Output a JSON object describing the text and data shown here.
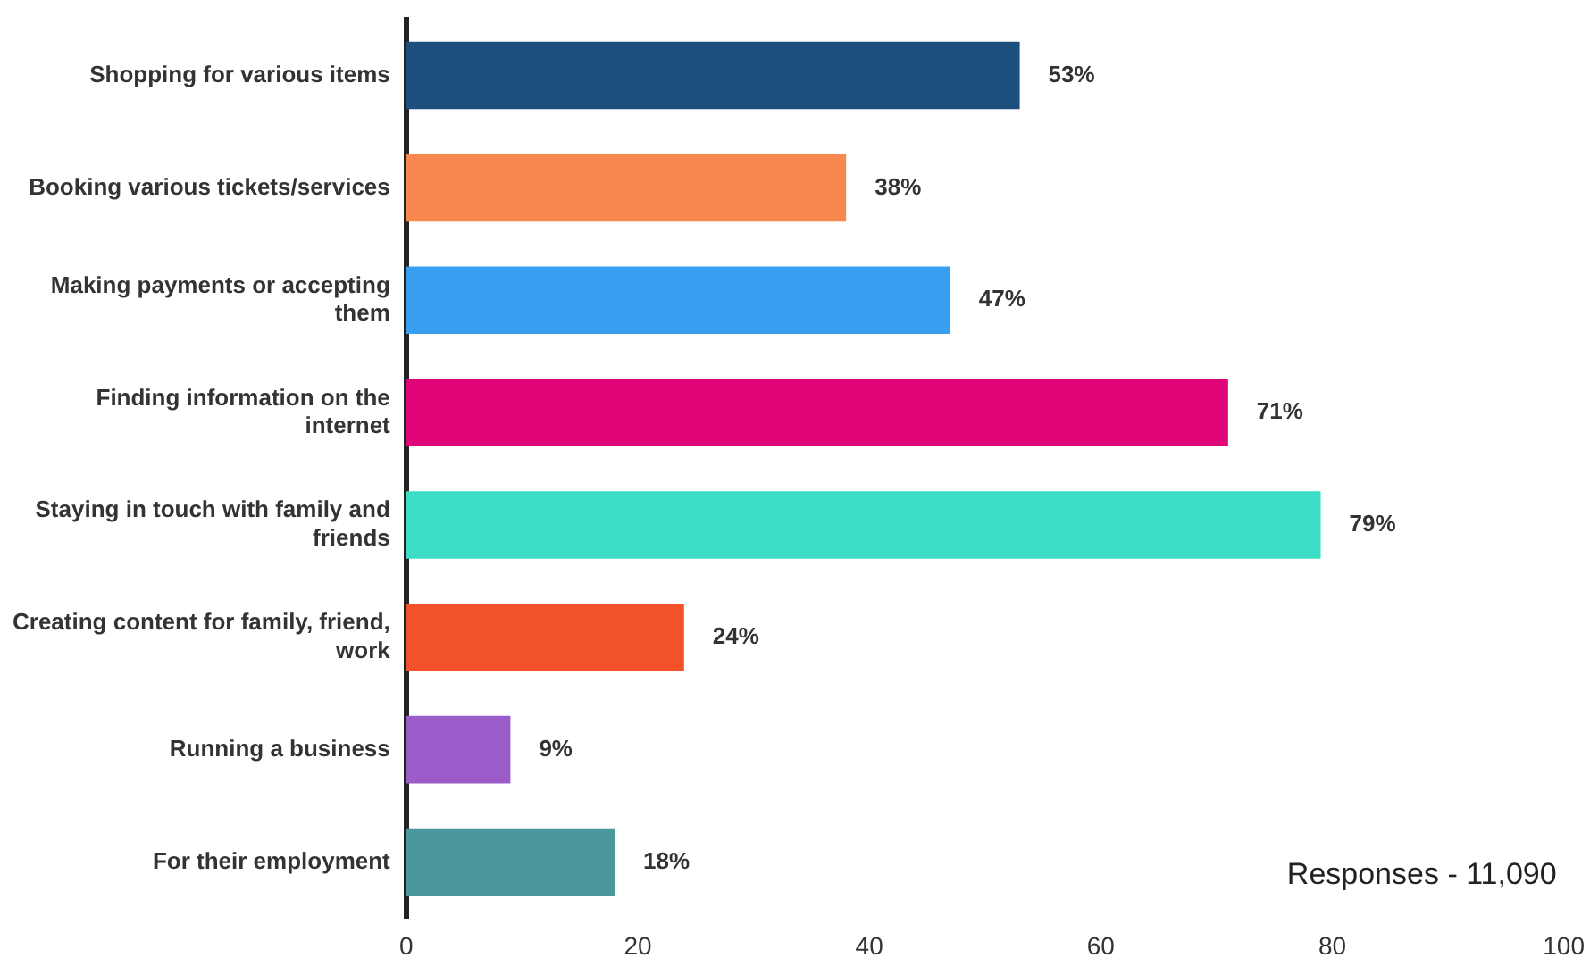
{
  "chart_data": {
    "type": "bar",
    "orientation": "horizontal",
    "categories": [
      "Shopping for various items",
      "Booking various tickets/services",
      "Making payments or accepting them",
      "Finding information on the internet",
      "Staying in touch with family and friends",
      "Creating content for family, friend, work",
      "Running a business",
      "For their employment"
    ],
    "values": [
      53,
      38,
      47,
      71,
      79,
      24,
      9,
      18
    ],
    "colors": [
      "#1c4f7d",
      "#f7894e",
      "#389ff0",
      "#df0578",
      "#3ddcc5",
      "#f3512a",
      "#9b5bc8",
      "#4a989c"
    ],
    "value_labels": [
      "53%",
      "38%",
      "47%",
      "71%",
      "79%",
      "24%",
      "9%",
      "18%"
    ],
    "xlim": [
      0,
      100
    ],
    "xticks": [
      0,
      20,
      40,
      60,
      80,
      100
    ],
    "grid": false,
    "legend": false,
    "annotations": [
      "Responses - 11,090"
    ]
  }
}
